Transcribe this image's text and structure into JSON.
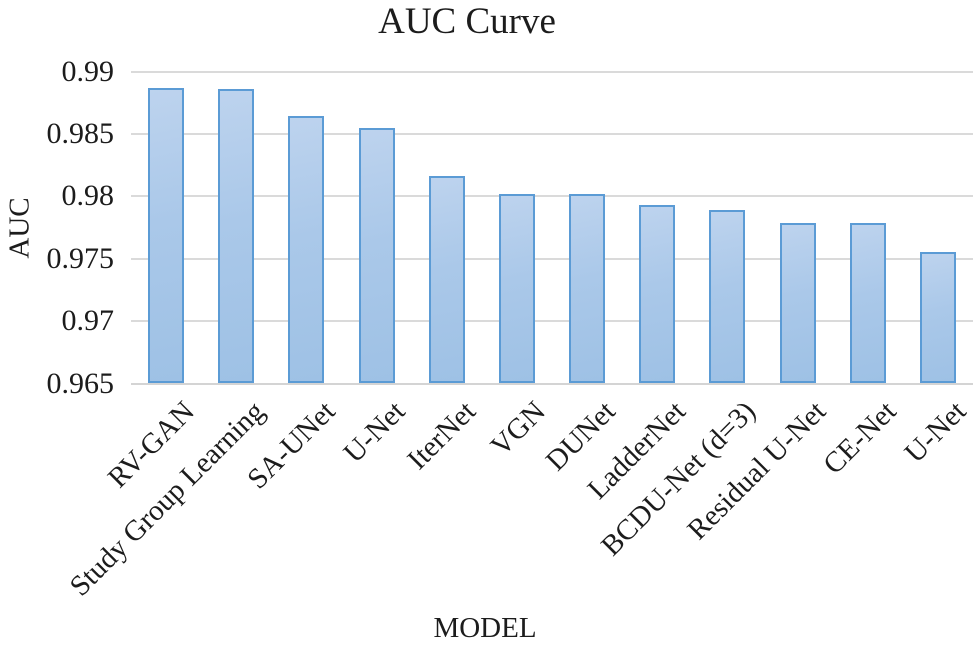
{
  "figure_name": "auc-bar-chart",
  "chart_data": {
    "type": "bar",
    "title": "AUC Curve",
    "xlabel": "MODEL",
    "ylabel": "AUC",
    "categories": [
      "RV-GAN",
      "Study Group Learning",
      "SA-UNet",
      "U-Net",
      "IterNet",
      "VGN",
      "DUNet",
      "LadderNet",
      "BCDU-Net (d=3)",
      "Residual U-Net",
      "CE-Net",
      "U-Net"
    ],
    "values": [
      0.9887,
      0.9886,
      0.9864,
      0.9855,
      0.9816,
      0.9802,
      0.9802,
      0.9793,
      0.9789,
      0.9779,
      0.9779,
      0.9755
    ],
    "ylim": [
      0.965,
      0.99
    ],
    "ytick_step": 0.005,
    "ytick_labels": [
      "0.965",
      "0.97",
      "0.975",
      "0.98",
      "0.985",
      "0.99"
    ],
    "grid": true,
    "legend": "none",
    "colors": {
      "bar_fill_top": "#bdd3ee",
      "bar_fill_bottom": "#9ec1e5",
      "bar_border": "#5b9bd5",
      "gridline": "#dadada",
      "axis_line": "#d4d4d4",
      "text": "#1c1c1c"
    }
  }
}
